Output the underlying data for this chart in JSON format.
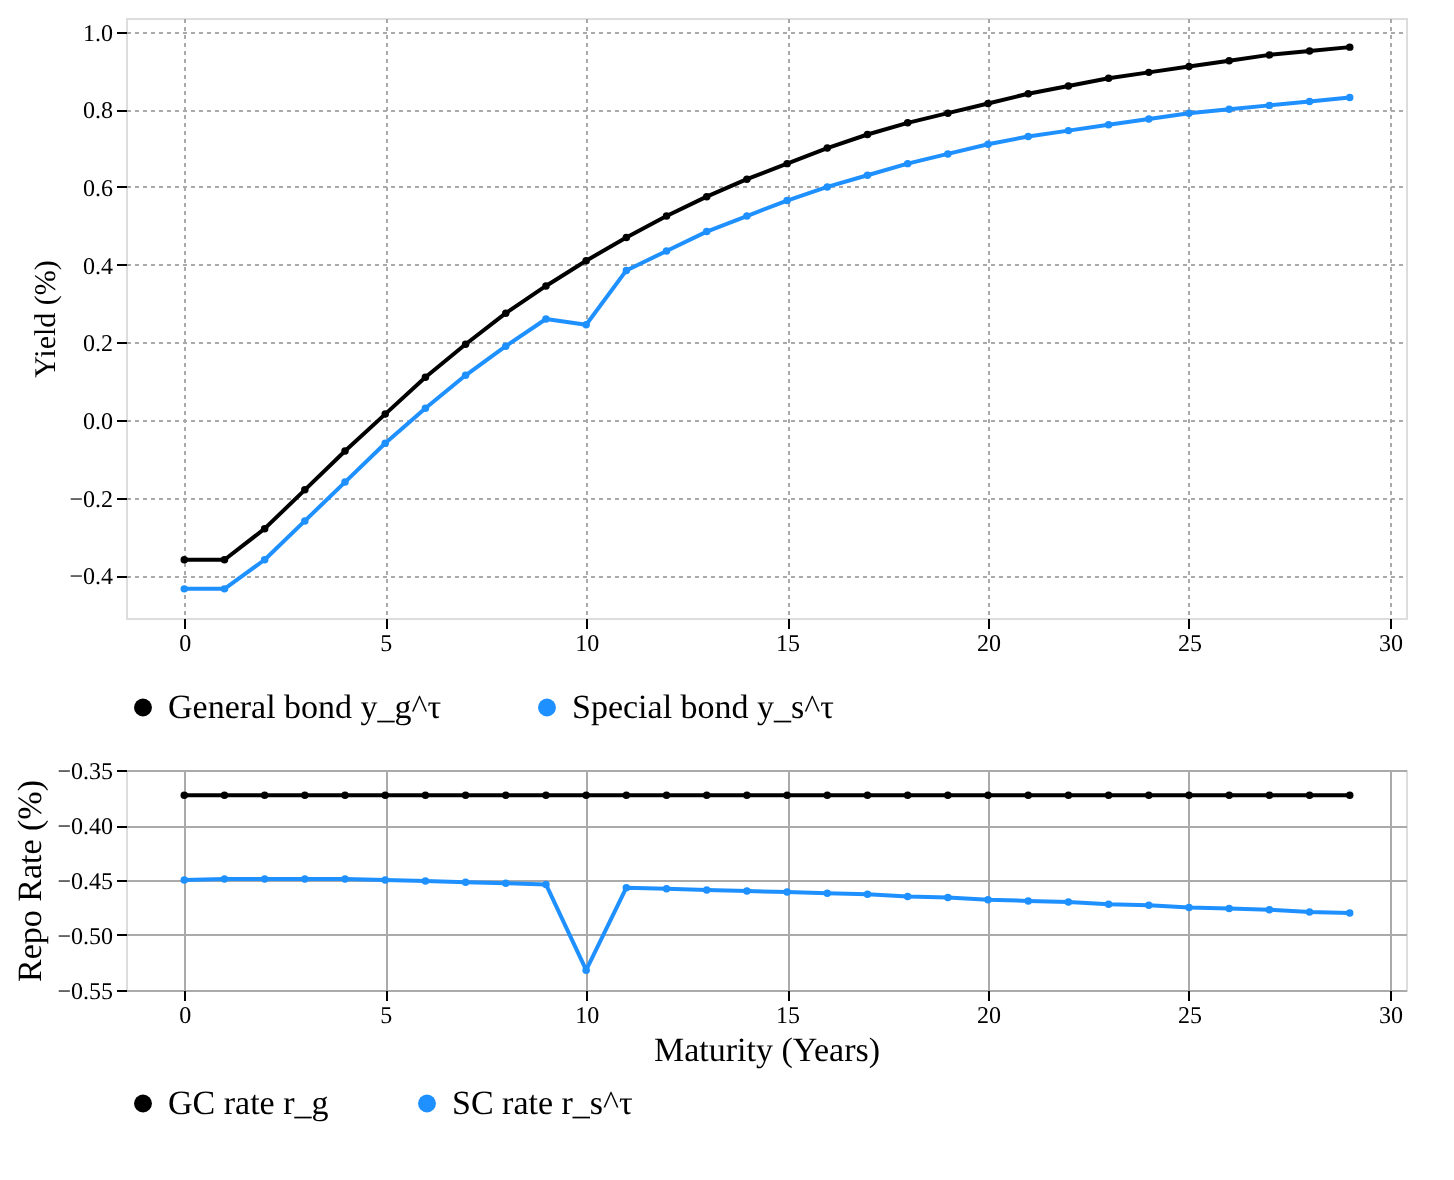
{
  "chart_data": [
    {
      "type": "line",
      "ylabel": "Yield (%)",
      "x": [
        0,
        1,
        2,
        3,
        4,
        5,
        6,
        7,
        8,
        9,
        10,
        11,
        12,
        13,
        14,
        15,
        16,
        17,
        18,
        19,
        20,
        21,
        22,
        23,
        24,
        25,
        26,
        27,
        28,
        29
      ],
      "series": [
        {
          "name": "General bond  y_g^τ",
          "color": "#000000",
          "values": [
            -0.36,
            -0.36,
            -0.28,
            -0.18,
            -0.08,
            0.015,
            0.11,
            0.195,
            0.275,
            0.345,
            0.41,
            0.47,
            0.525,
            0.575,
            0.62,
            0.66,
            0.7,
            0.735,
            0.765,
            0.79,
            0.815,
            0.84,
            0.86,
            0.88,
            0.895,
            0.91,
            0.925,
            0.94,
            0.95,
            0.96
          ]
        },
        {
          "name": "Special bond  y_s^τ",
          "color": "#1e90ff",
          "values": [
            -0.435,
            -0.435,
            -0.36,
            -0.26,
            -0.16,
            -0.06,
            0.03,
            0.115,
            0.19,
            0.26,
            0.245,
            0.385,
            0.435,
            0.485,
            0.525,
            0.565,
            0.6,
            0.63,
            0.66,
            0.685,
            0.71,
            0.73,
            0.745,
            0.76,
            0.775,
            0.79,
            0.8,
            0.81,
            0.82,
            0.83
          ]
        }
      ],
      "xlim": [
        -1.45,
        30.4
      ],
      "xticks": [
        0,
        5,
        10,
        15,
        20,
        25,
        30
      ],
      "ylim": [
        -0.51,
        1.035
      ],
      "yticks": [
        -0.4,
        -0.2,
        {
          "value": 0,
          "label": "0.0"
        },
        0.2,
        0.4,
        0.6,
        0.8,
        {
          "value": 1,
          "label": "1.0"
        }
      ],
      "grid": true,
      "legend": "bottom",
      "marker": "circle",
      "line_style": "solid"
    },
    {
      "type": "line",
      "xlabel": "Maturity (Years)",
      "ylabel": "Repo Rate (%)",
      "x": [
        0,
        1,
        2,
        3,
        4,
        5,
        6,
        7,
        8,
        9,
        10,
        11,
        12,
        13,
        14,
        15,
        16,
        17,
        18,
        19,
        20,
        21,
        22,
        23,
        24,
        25,
        26,
        27,
        28,
        29
      ],
      "series": [
        {
          "name": "GC rate r_g",
          "color": "#000000",
          "values": [
            -0.373,
            -0.373,
            -0.373,
            -0.373,
            -0.373,
            -0.373,
            -0.373,
            -0.373,
            -0.373,
            -0.373,
            -0.373,
            -0.373,
            -0.373,
            -0.373,
            -0.373,
            -0.373,
            -0.373,
            -0.373,
            -0.373,
            -0.373,
            -0.373,
            -0.373,
            -0.373,
            -0.373,
            -0.373,
            -0.373,
            -0.373,
            -0.373,
            -0.373,
            -0.373
          ]
        },
        {
          "name": "SC rate r_s^τ",
          "color": "#1e90ff",
          "values": [
            -0.45,
            -0.449,
            -0.449,
            -0.449,
            -0.449,
            -0.45,
            -0.451,
            -0.452,
            -0.453,
            -0.454,
            -0.532,
            -0.457,
            -0.458,
            -0.459,
            -0.46,
            -0.461,
            -0.462,
            -0.463,
            -0.465,
            -0.466,
            -0.468,
            -0.469,
            -0.47,
            -0.472,
            -0.473,
            -0.475,
            -0.476,
            -0.477,
            -0.479,
            -0.48
          ]
        }
      ],
      "xlim": [
        -1.45,
        30.4
      ],
      "xticks": [
        0,
        5,
        10,
        15,
        20,
        25,
        30
      ],
      "ylim": [
        -0.55,
        -0.35
      ],
      "yticks": [
        -0.55,
        {
          "value": -0.5,
          "label": "−0.50"
        },
        -0.45,
        {
          "value": -0.4,
          "label": "−0.40"
        },
        -0.35
      ],
      "grid": true,
      "legend": "bottom",
      "marker": "circle",
      "line_style": "solid"
    }
  ]
}
